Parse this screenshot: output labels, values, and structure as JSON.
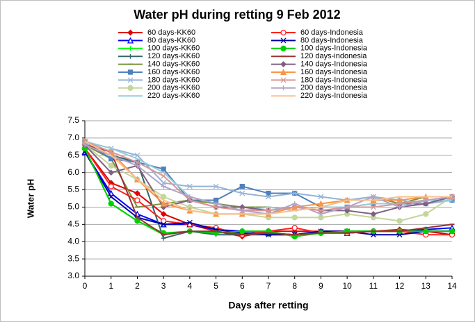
{
  "chart_data": {
    "type": "line",
    "title": "Water pH during retting 9 Feb 2012",
    "x_label": "Days after retting",
    "y_label": "Water pH",
    "x": [
      0,
      1,
      2,
      3,
      4,
      5,
      6,
      7,
      8,
      9,
      10,
      11,
      12,
      13,
      14
    ],
    "xlim": [
      0,
      14
    ],
    "xticks": [
      0,
      1,
      2,
      3,
      4,
      5,
      6,
      7,
      8,
      9,
      10,
      11,
      12,
      13,
      14
    ],
    "ylim": [
      3,
      7.5
    ],
    "yticks": [
      {
        "value": 3,
        "label": "3.0"
      },
      3.5,
      {
        "value": 4,
        "label": "4.0"
      },
      4.5,
      {
        "value": 5,
        "label": "5.0"
      },
      5.5,
      {
        "value": 6,
        "label": "6.0"
      },
      6.5,
      {
        "value": 7,
        "label": "7.0"
      },
      7.5
    ],
    "grid": true,
    "series": [
      {
        "name": "60 days-KK60",
        "color": "#e00000",
        "marker": "diamond",
        "values": [
          6.7,
          5.7,
          5.4,
          4.8,
          4.5,
          4.3,
          4.15,
          4.3,
          4.3,
          4.3,
          4.3,
          4.3,
          4.35,
          4.3,
          4.2
        ]
      },
      {
        "name": "80 days-KK60",
        "color": "#0000ff",
        "marker": "triangle-open",
        "values": [
          6.6,
          5.4,
          4.8,
          4.5,
          4.5,
          4.35,
          4.3,
          4.25,
          4.2,
          4.3,
          4.25,
          4.3,
          4.3,
          4.35,
          4.4
        ]
      },
      {
        "name": "100 days-KK60",
        "color": "#00ff00",
        "marker": "plus",
        "values": [
          6.7,
          5.1,
          4.6,
          4.2,
          4.3,
          4.25,
          4.3,
          4.3,
          4.15,
          4.25,
          4.3,
          4.3,
          4.3,
          4.3,
          4.3
        ]
      },
      {
        "name": "120 days-KK60",
        "color": "#336666",
        "marker": "plus",
        "values": [
          6.8,
          6.5,
          6.3,
          4.1,
          4.3,
          4.2,
          4.2,
          4.2,
          4.2,
          4.3,
          4.3,
          4.3,
          4.3,
          4.3,
          4.3
        ]
      },
      {
        "name": "140 days-KK60",
        "color": "#77933c",
        "marker": "dash",
        "values": [
          6.8,
          6.4,
          5.0,
          5.1,
          5.2,
          5.1,
          5.0,
          5.0,
          4.9,
          5.0,
          5.2,
          5.3,
          5.1,
          5.3,
          5.3
        ]
      },
      {
        "name": "160 days-KK60",
        "color": "#4f81bd",
        "marker": "square",
        "values": [
          6.9,
          6.4,
          6.3,
          6.1,
          5.2,
          5.2,
          5.6,
          5.4,
          5.4,
          5.0,
          5.0,
          5.1,
          5.1,
          5.1,
          5.2
        ]
      },
      {
        "name": "180 days-KK60",
        "color": "#95b3d7",
        "marker": "x",
        "values": [
          6.9,
          6.7,
          6.5,
          5.7,
          5.6,
          5.6,
          5.4,
          5.3,
          5.4,
          5.3,
          5.2,
          5.3,
          5.2,
          5.1,
          5.2
        ]
      },
      {
        "name": "200 days-KK60",
        "color": "#c3d69b",
        "marker": "circle",
        "values": [
          6.8,
          6.2,
          5.8,
          5.3,
          5.0,
          4.8,
          4.8,
          4.7,
          4.7,
          4.7,
          4.8,
          4.7,
          4.6,
          4.8,
          5.3
        ]
      },
      {
        "name": "220 days-KK60",
        "color": "#93cddd",
        "marker": "none",
        "values": [
          6.9,
          6.7,
          6.4,
          6.0,
          5.3,
          5.1,
          4.9,
          5.0,
          4.9,
          5.0,
          5.0,
          5.1,
          5.1,
          5.2,
          5.2
        ]
      },
      {
        "name": "60 days-Indonesia",
        "color": "#ff2020",
        "marker": "circle-open",
        "values": [
          6.7,
          5.6,
          5.2,
          4.6,
          4.5,
          4.4,
          4.2,
          4.3,
          4.4,
          4.25,
          4.25,
          4.3,
          4.3,
          4.2,
          4.2
        ]
      },
      {
        "name": "80 days-Indonesia",
        "color": "#0000a0",
        "marker": "x",
        "values": [
          6.6,
          5.3,
          4.7,
          4.5,
          4.55,
          4.35,
          4.25,
          4.2,
          4.2,
          4.3,
          4.3,
          4.2,
          4.2,
          4.3,
          4.3
        ]
      },
      {
        "name": "100 days-Indonesia",
        "color": "#00d000",
        "marker": "circle",
        "values": [
          6.7,
          5.1,
          4.6,
          4.25,
          4.3,
          4.25,
          4.3,
          4.3,
          4.15,
          4.25,
          4.3,
          4.3,
          4.3,
          4.3,
          4.3
        ]
      },
      {
        "name": "120 days-indonesia",
        "color": "#993333",
        "marker": "dash",
        "values": [
          6.8,
          6.6,
          4.7,
          4.2,
          4.3,
          4.3,
          4.2,
          4.25,
          4.2,
          4.25,
          4.25,
          4.3,
          4.3,
          4.4,
          4.5
        ]
      },
      {
        "name": "140 days-Indonesia",
        "color": "#7f6084",
        "marker": "diamond",
        "values": [
          6.8,
          6.0,
          6.2,
          5.0,
          5.2,
          5.0,
          5.0,
          4.9,
          5.0,
          4.9,
          4.9,
          4.8,
          5.0,
          5.1,
          5.3
        ]
      },
      {
        "name": "160 days-Indonesia",
        "color": "#f79646",
        "marker": "triangle",
        "values": [
          6.9,
          6.6,
          5.8,
          5.1,
          4.9,
          4.8,
          4.8,
          4.8,
          5.0,
          5.1,
          5.2,
          5.2,
          5.2,
          5.3,
          5.3
        ]
      },
      {
        "name": "180 days-Indonesia",
        "color": "#d99694",
        "marker": "x",
        "values": [
          6.9,
          6.6,
          6.3,
          5.9,
          5.2,
          5.0,
          4.9,
          4.9,
          5.0,
          4.9,
          5.0,
          5.0,
          5.1,
          5.2,
          5.3
        ]
      },
      {
        "name": "200 days-Indonesia",
        "color": "#b3a2c7",
        "marker": "plus",
        "values": [
          6.8,
          6.5,
          6.2,
          5.6,
          5.3,
          5.1,
          4.9,
          4.8,
          5.1,
          4.8,
          5.0,
          5.3,
          5.0,
          5.2,
          5.3
        ]
      },
      {
        "name": "220 days-Indonesia",
        "color": "#fac090",
        "marker": "none",
        "values": [
          6.9,
          6.5,
          5.8,
          5.2,
          4.9,
          4.8,
          4.8,
          4.8,
          4.9,
          5.0,
          5.2,
          5.2,
          5.3,
          5.3,
          5.3
        ]
      }
    ]
  }
}
